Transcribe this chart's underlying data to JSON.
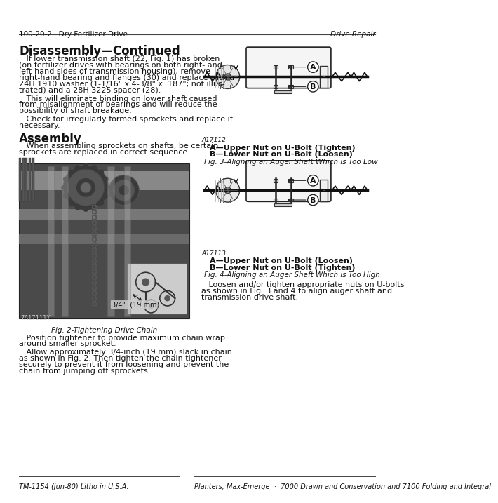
{
  "page_header_left": "100-20-2   Dry Fertilizer Drive",
  "page_header_right": "Drive Repair",
  "page_footer_left": "TM-1154 (Jun-80) Litho in U.S.A.",
  "page_footer_right": "Planters, Max-Emerge  ·  7000 Drawn and Conservation and 7100 Folding and Integral",
  "section1_title": "Disassembly—Continued",
  "section2_title": "Assembly",
  "para1_lines": [
    "   If lower transmission shaft (22, Fig. 1) has broken",
    "(on fertilizer drives with bearings on both right- and",
    "left-hand sides of transmission housing), remove",
    "right-hand bearing and flanges (30) and replace with a",
    "24H 1910 washer (1-1/16\" x 4-3/8\" x .187\"; not illus-",
    "trated) and a 28H 3225 spacer (28)."
  ],
  "para2_lines": [
    "   This will eliminate binding on lower shaft caused",
    "from misalignment of bearings and will reduce the",
    "possibility of shaft breakage."
  ],
  "para3_lines": [
    "   Check for irregularly formed sprockets and replace if",
    "necessary."
  ],
  "para4_lines": [
    "   When assembling sprockets on shafts, be certain",
    "sprockets are replaced in correct sequence."
  ],
  "para5_lines": [
    "   Position tightener to provide maximum chain wrap",
    "around smaller sprocket."
  ],
  "para6_lines": [
    "   Allow approximately 3/4-inch (19 mm) slack in chain",
    "as shown in Fig. 2. Then tighten the chain tightener",
    "securely to prevent it from loosening and prevent the",
    "chain from jumping off sprockets."
  ],
  "fig2_caption": "Fig. 2-Tightening Drive Chain",
  "fig2_id": "7A17111Y",
  "fig2_annotation": "3/4\"  (19 mm)",
  "fig3_id": "A17112",
  "fig3_caption": "Fig. 3-Aligning an Auger Shaft Which is Too Low",
  "fig3_label_a": "A—Upper Nut on U-Bolt (Tighten)",
  "fig3_label_b": "B—Lower Nut on U-Bolt (Loosen)",
  "fig4_id": "A17113",
  "fig4_caption": "Fig. 4-Aligning an Auger Shaft Which is Too High",
  "fig4_label_a": "A—Upper Nut on U-Bolt (Loosen)",
  "fig4_label_b": "B—Lower Nut on U-Bolt (Tighten)",
  "sec3_lines": [
    "   Loosen and/or tighten appropriate nuts on U-bolts",
    "as shown in Fig. 3 and 4 to align auger shaft and",
    "transmission drive shaft."
  ],
  "bg_color": "#ffffff",
  "text_color": "#111111",
  "line_color": "#333333"
}
